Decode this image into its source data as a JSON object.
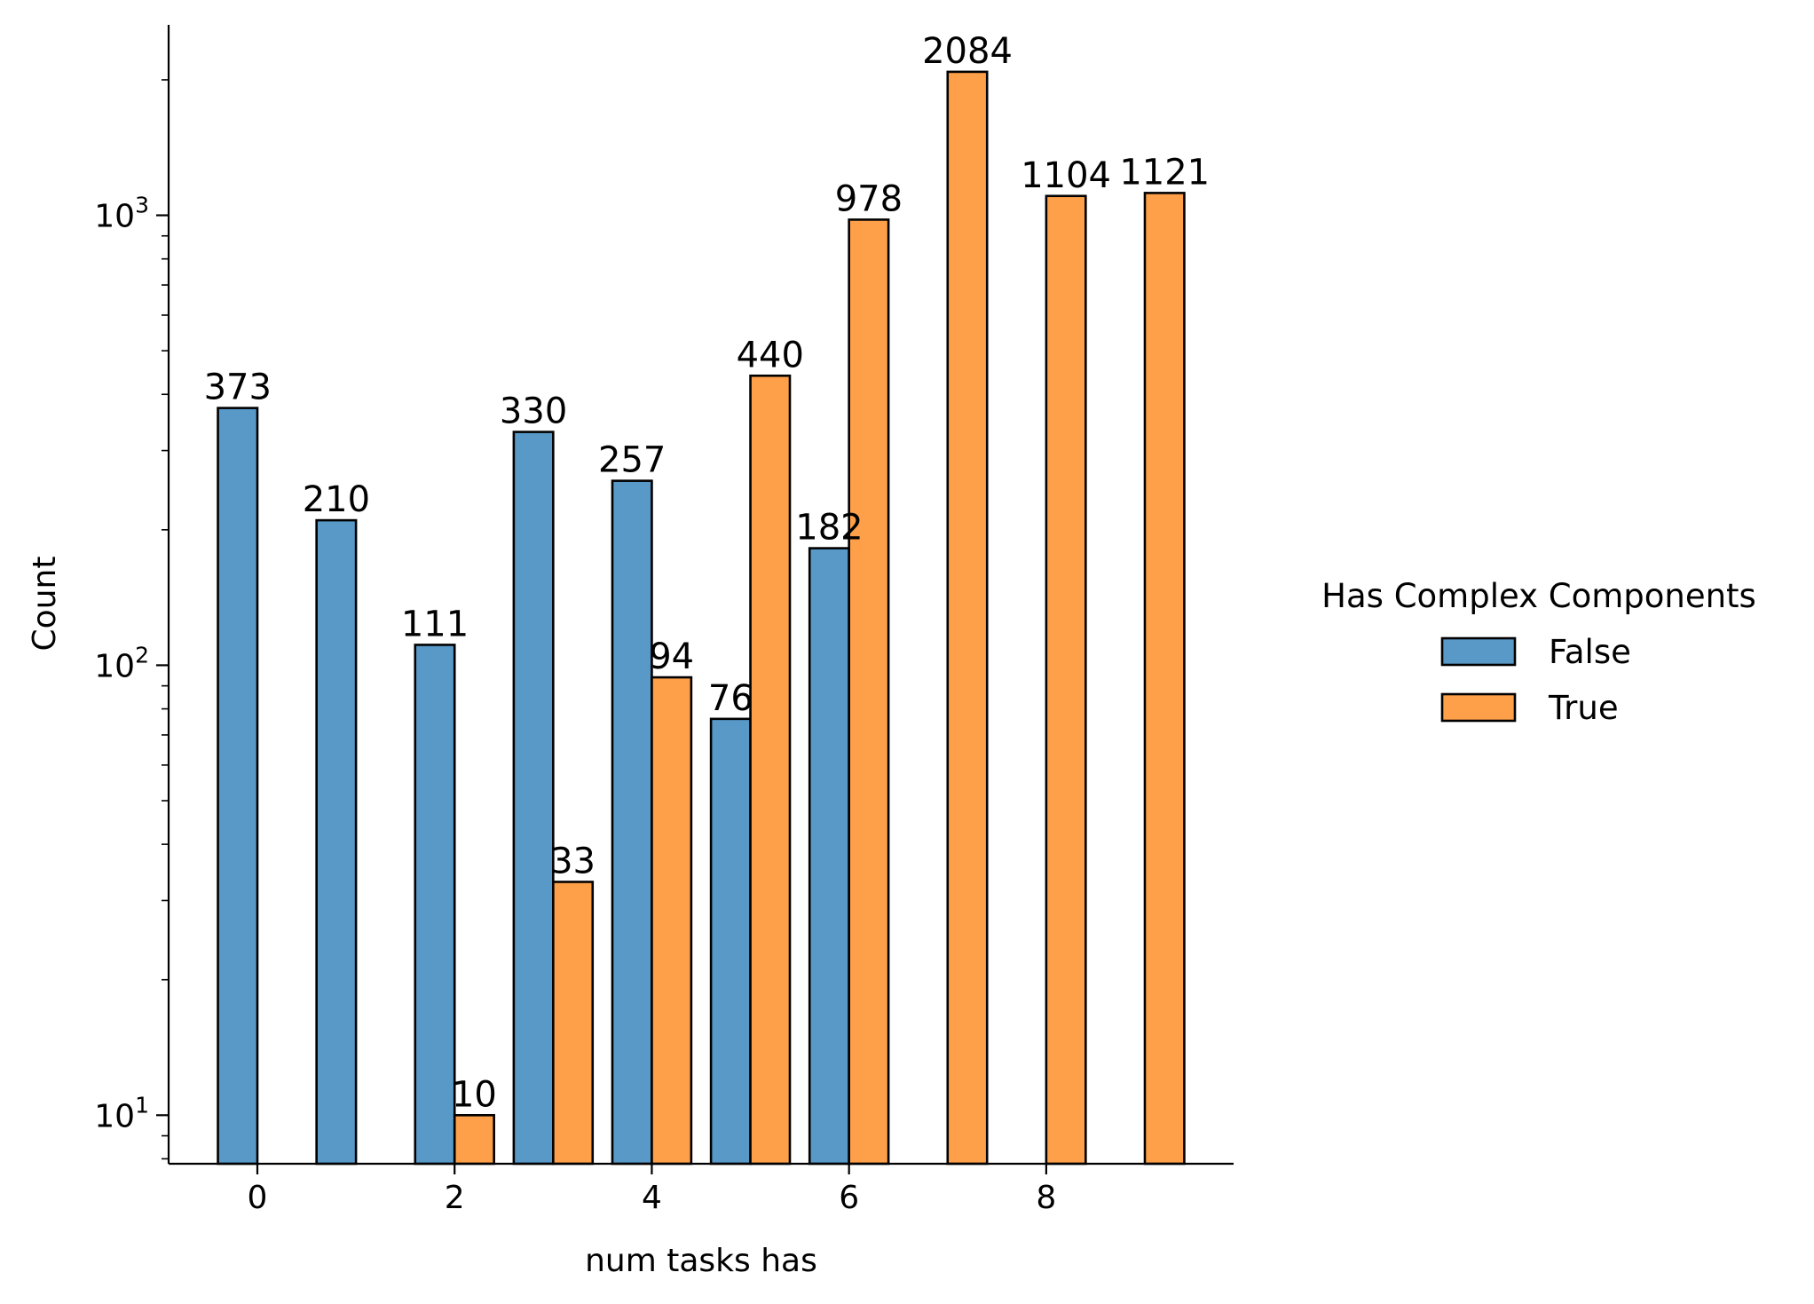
{
  "chart_data": {
    "type": "bar",
    "xlabel": "num tasks has",
    "ylabel": "Count",
    "yscale": "log",
    "ylim": [
      7.8,
      2650
    ],
    "xlim": [
      -0.9,
      9.9
    ],
    "x_ticks": [
      0,
      2,
      4,
      6,
      8
    ],
    "y_ticks": [
      {
        "base": "10",
        "exp": "1",
        "value": 10
      },
      {
        "base": "10",
        "exp": "2",
        "value": 100
      },
      {
        "base": "10",
        "exp": "3",
        "value": 1000
      }
    ],
    "grid": false,
    "legend": {
      "title": "Has Complex Components",
      "placement": "right"
    },
    "series": [
      {
        "name": "False",
        "color": "#5899c8",
        "x": [
          0,
          1,
          2,
          3,
          4,
          5,
          6
        ],
        "values": [
          373,
          210,
          111,
          330,
          257,
          76,
          182
        ],
        "labels": [
          "373",
          "210",
          "111",
          "330",
          "257",
          "76",
          "182"
        ]
      },
      {
        "name": "True",
        "color": "#fea04a",
        "x": [
          2,
          3,
          4,
          5,
          6,
          7,
          8,
          9
        ],
        "values": [
          10,
          33,
          94,
          440,
          978,
          2084,
          1104,
          1121
        ],
        "labels": [
          "10",
          "33",
          "94",
          "440",
          "978",
          "2084",
          "1104",
          "1121"
        ]
      }
    ]
  }
}
